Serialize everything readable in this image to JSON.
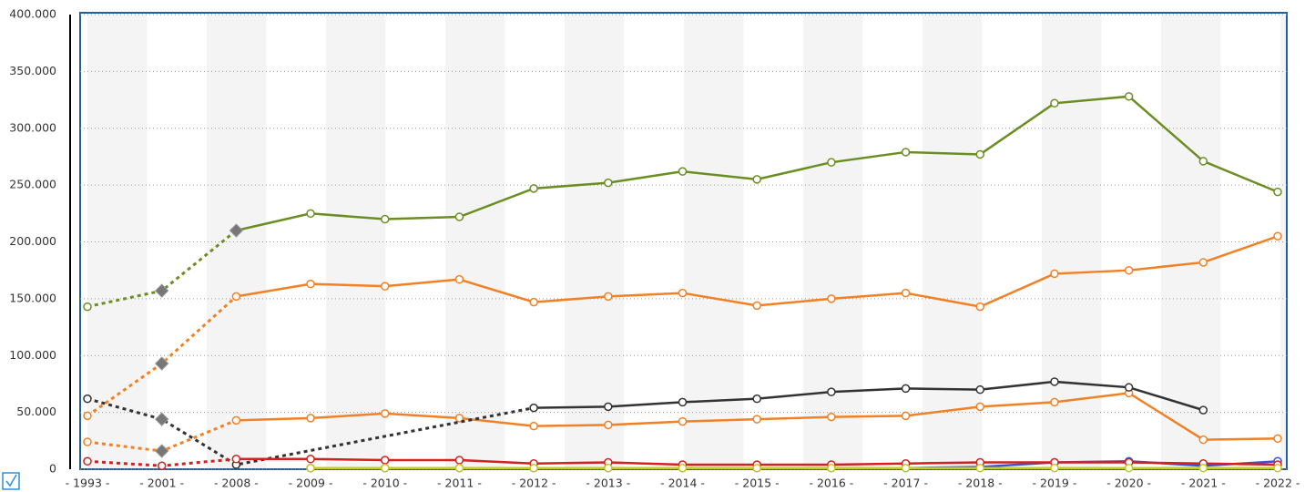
{
  "chart_data": {
    "type": "line",
    "categories": [
      "- 1993 -",
      "- 2001 -",
      "- 2008 -",
      "- 2009 -",
      "- 2010 -",
      "- 2011 -",
      "- 2012 -",
      "- 2013 -",
      "- 2014 -",
      "- 2015 -",
      "- 2016 -",
      "- 2017 -",
      "- 2018 -",
      "- 2019 -",
      "- 2020 -",
      "- 2021 -",
      "- 2022 -"
    ],
    "ylim": [
      0,
      400000
    ],
    "yticks": [
      {
        "value": 0,
        "label": "0"
      },
      {
        "value": 50000,
        "label": "50.000"
      },
      {
        "value": 100000,
        "label": "100.000"
      },
      {
        "value": 150000,
        "label": "150.000"
      },
      {
        "value": 200000,
        "label": "200.000"
      },
      {
        "value": 250000,
        "label": "250.000"
      },
      {
        "value": 300000,
        "label": "300.000"
      },
      {
        "value": 350000,
        "label": "350.000"
      },
      {
        "value": 400000,
        "label": "400.000"
      }
    ],
    "grid": true,
    "series": [
      {
        "color": "#6b8e23",
        "dashed_until": 2,
        "diamonds": [
          1,
          2
        ],
        "values": [
          143000,
          157000,
          210000,
          225000,
          220000,
          222000,
          247000,
          252000,
          262000,
          255000,
          270000,
          279000,
          277000,
          322000,
          328000,
          271000,
          244000
        ]
      },
      {
        "color": "#f28024",
        "dashed_until": 2,
        "diamonds": [
          1
        ],
        "values": [
          47000,
          93000,
          152000,
          163000,
          161000,
          167000,
          147000,
          152000,
          155000,
          144000,
          150000,
          155000,
          143000,
          172000,
          175000,
          182000,
          205000
        ]
      },
      {
        "color": "#f28024",
        "dashed_until": 2,
        "diamonds": [
          1
        ],
        "values": [
          24000,
          16000,
          43000,
          45000,
          49000,
          45000,
          38000,
          39000,
          42000,
          44000,
          46000,
          47000,
          55000,
          59000,
          67000,
          26000,
          27000
        ]
      },
      {
        "color": "#333333",
        "dashed_until": 6,
        "diamonds": [
          1
        ],
        "values": [
          62000,
          44000,
          4000,
          null,
          null,
          null,
          54000,
          55000,
          59000,
          62000,
          68000,
          71000,
          70000,
          77000,
          72000,
          52000,
          null
        ]
      },
      {
        "color": "#3355dd",
        "dashed_until": 0,
        "diamonds": [],
        "values": [
          null,
          null,
          null,
          1000,
          1000,
          1000,
          1000,
          1000,
          1000,
          1000,
          1000,
          1000,
          2000,
          6000,
          7000,
          3000,
          7000
        ]
      },
      {
        "color": "#d42020",
        "dashed_until": 2,
        "diamonds": [],
        "values": [
          7000,
          3000,
          9000,
          9000,
          8000,
          8000,
          5000,
          6000,
          4000,
          4000,
          4000,
          5000,
          6000,
          6000,
          6000,
          5000,
          4000
        ]
      },
      {
        "color": "#c8c820",
        "dashed_until": 0,
        "diamonds": [],
        "values": [
          null,
          null,
          null,
          1000,
          1000,
          1000,
          1000,
          1000,
          1000,
          1000,
          1000,
          1000,
          1000,
          1000,
          1000,
          1000,
          1000
        ]
      }
    ]
  }
}
